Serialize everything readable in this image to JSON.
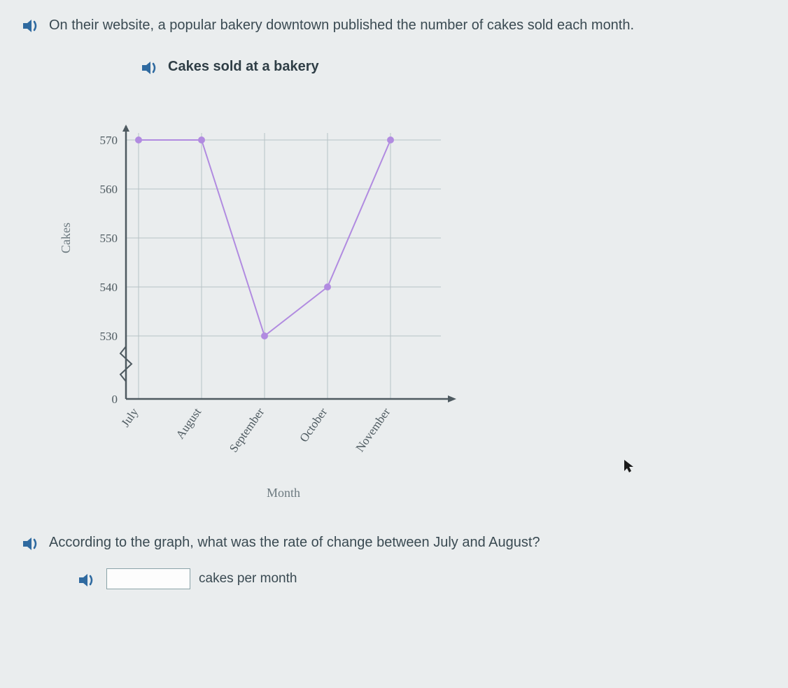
{
  "intro_text": "On their website, a popular bakery downtown published the number of cakes sold each month.",
  "chart": {
    "title": "Cakes sold at a bakery",
    "type": "line",
    "x_label": "Month",
    "y_label": "Cakes",
    "categories": [
      "July",
      "August",
      "September",
      "October",
      "November"
    ],
    "values": [
      570,
      570,
      530,
      540,
      570
    ],
    "y_ticks": [
      0,
      530,
      540,
      550,
      560,
      570
    ],
    "y_min_display": 0,
    "y_break_between": [
      0,
      530
    ],
    "line_color": "#b18be0",
    "marker_color": "#b18be0",
    "marker_radius": 5,
    "line_width": 2,
    "axis_color": "#4e5a60",
    "grid_color": "#b7c2c6",
    "background_color": "#eaedee",
    "tick_label_color": "#4e5a60",
    "axis_label_color": "#6d7a80",
    "tick_fontsize": 17,
    "axis_label_fontsize": 18,
    "xlabel_rotation_deg": -55
  },
  "question_text": "According to the graph, what was the rate of change between July and August?",
  "answer_unit": "cakes per month",
  "answer_value": "",
  "colors": {
    "speaker": "#2f6aa0",
    "page_bg": "#eaedee",
    "text": "#3a4a52"
  }
}
